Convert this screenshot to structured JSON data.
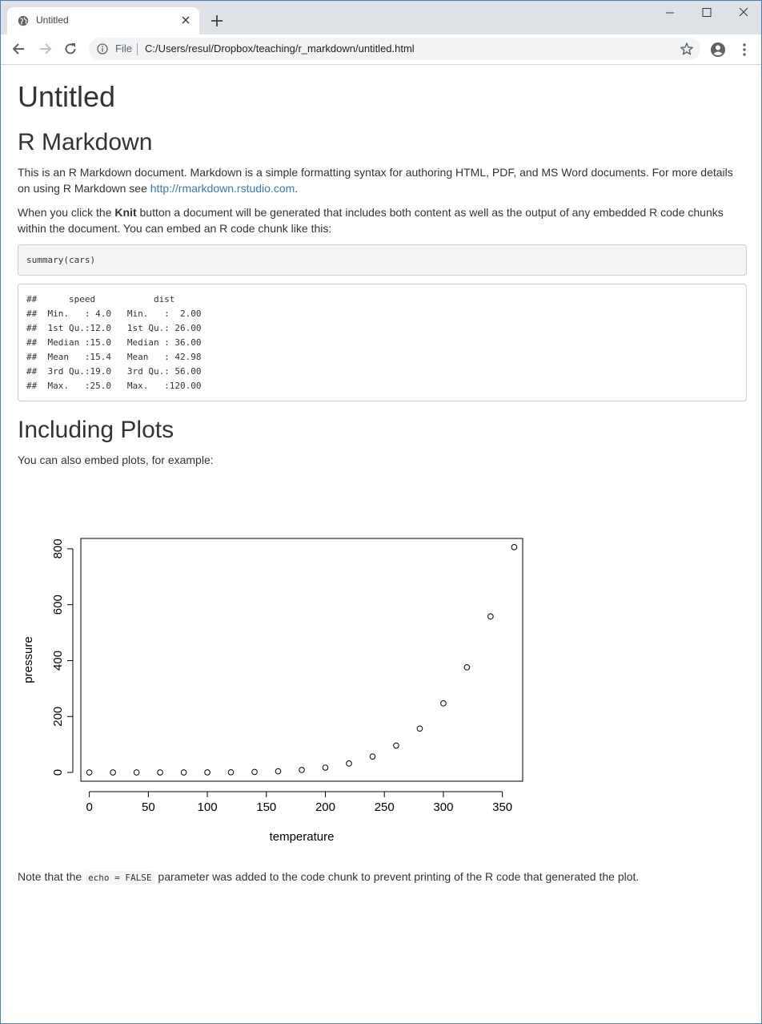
{
  "browser": {
    "tab_title": "Untitled",
    "file_label": "File",
    "url": "C:/Users/resul/Dropbox/teaching/r_markdown/untitled.html"
  },
  "doc": {
    "title": "Untitled",
    "h2_markdown": "R Markdown",
    "p1_text": "This is an R Markdown document. Markdown is a simple formatting syntax for authoring HTML, PDF, and MS Word documents. For more details on using R Markdown see ",
    "p1_link": "http://rmarkdown.rstudio.com",
    "p1_end": ".",
    "p2_start": "When you click the ",
    "p2_bold": "Knit",
    "p2_end": " button a document will be generated that includes both content as well as the output of any embedded R code chunks within the document. You can embed an R code chunk like this:",
    "code": "summary(cars)",
    "output_lines": [
      "##      speed           dist       ",
      "##  Min.   : 4.0   Min.   :  2.00  ",
      "##  1st Qu.:12.0   1st Qu.: 26.00  ",
      "##  Median :15.0   Median : 36.00  ",
      "##  Mean   :15.4   Mean   : 42.98  ",
      "##  3rd Qu.:19.0   3rd Qu.: 56.00  ",
      "##  Max.   :25.0   Max.   :120.00  "
    ],
    "h2_plots": "Including Plots",
    "p3": "You can also embed plots, for example:",
    "note_start": "Note that the ",
    "note_code": "echo = FALSE",
    "note_end": " parameter was added to the code chunk to prevent printing of the R code that generated the plot."
  },
  "chart_data": {
    "type": "scatter",
    "title": "",
    "xlabel": "temperature",
    "ylabel": "pressure",
    "xticks": [
      0,
      50,
      100,
      150,
      200,
      250,
      300,
      350
    ],
    "yticks": [
      0,
      200,
      400,
      600,
      800
    ],
    "xlim": [
      -7.2,
      367.2
    ],
    "ylim": [
      -31.4,
      837.0
    ],
    "x": [
      0,
      20,
      40,
      60,
      80,
      100,
      120,
      140,
      160,
      180,
      200,
      220,
      240,
      260,
      280,
      300,
      320,
      340,
      360
    ],
    "y": [
      0.0002,
      0.0012,
      0.006,
      0.03,
      0.09,
      0.27,
      0.75,
      1.85,
      4.2,
      8.8,
      17.3,
      32.1,
      57,
      96,
      157,
      247,
      376,
      558,
      806
    ],
    "marker": "open-circle",
    "grid": false
  }
}
